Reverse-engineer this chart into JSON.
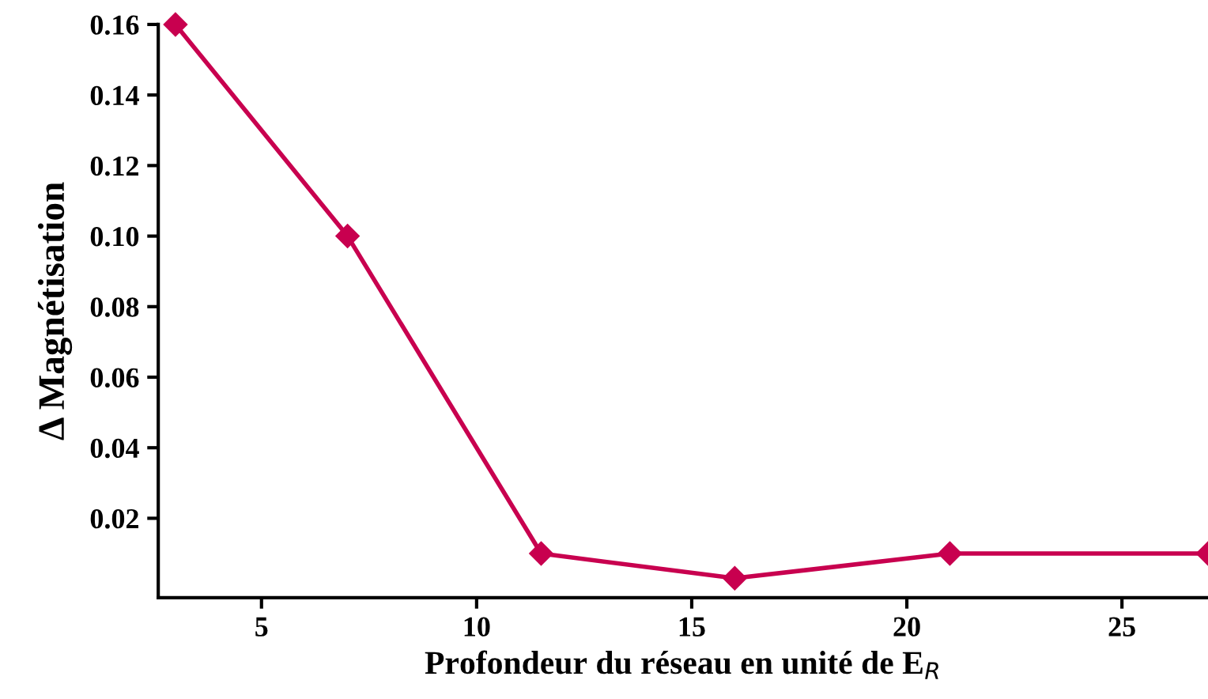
{
  "chart_data": {
    "type": "line",
    "xlabel": "Profondeur du réseau en unité de E$_{R}$",
    "ylabel": "Δ Magnétisation",
    "x": [
      3,
      7,
      11.5,
      16,
      21,
      27
    ],
    "series": [
      {
        "color": "#c8004f",
        "values": [
          0.16,
          0.1,
          0.01,
          0.003,
          0.01,
          0.01
        ]
      }
    ],
    "xlim": [
      2.6,
      27
    ],
    "xticks": [
      5,
      10,
      15,
      20,
      25
    ],
    "ylim": [
      -0.0025,
      0.16
    ],
    "yticks": [
      {
        "value": 0.02,
        "label": "0.02"
      },
      {
        "value": 0.04,
        "label": "0.04"
      },
      {
        "value": 0.06,
        "label": "0.06"
      },
      {
        "value": 0.08,
        "label": "0.08"
      },
      {
        "value": 0.1,
        "label": "0.10"
      },
      {
        "value": 0.12,
        "label": "0.12"
      },
      {
        "value": 0.14,
        "label": "0.14"
      },
      {
        "value": 0.16,
        "label": "0.16"
      }
    ],
    "marker": "diamond",
    "line_style": "solid",
    "grid": false,
    "legend": false
  }
}
